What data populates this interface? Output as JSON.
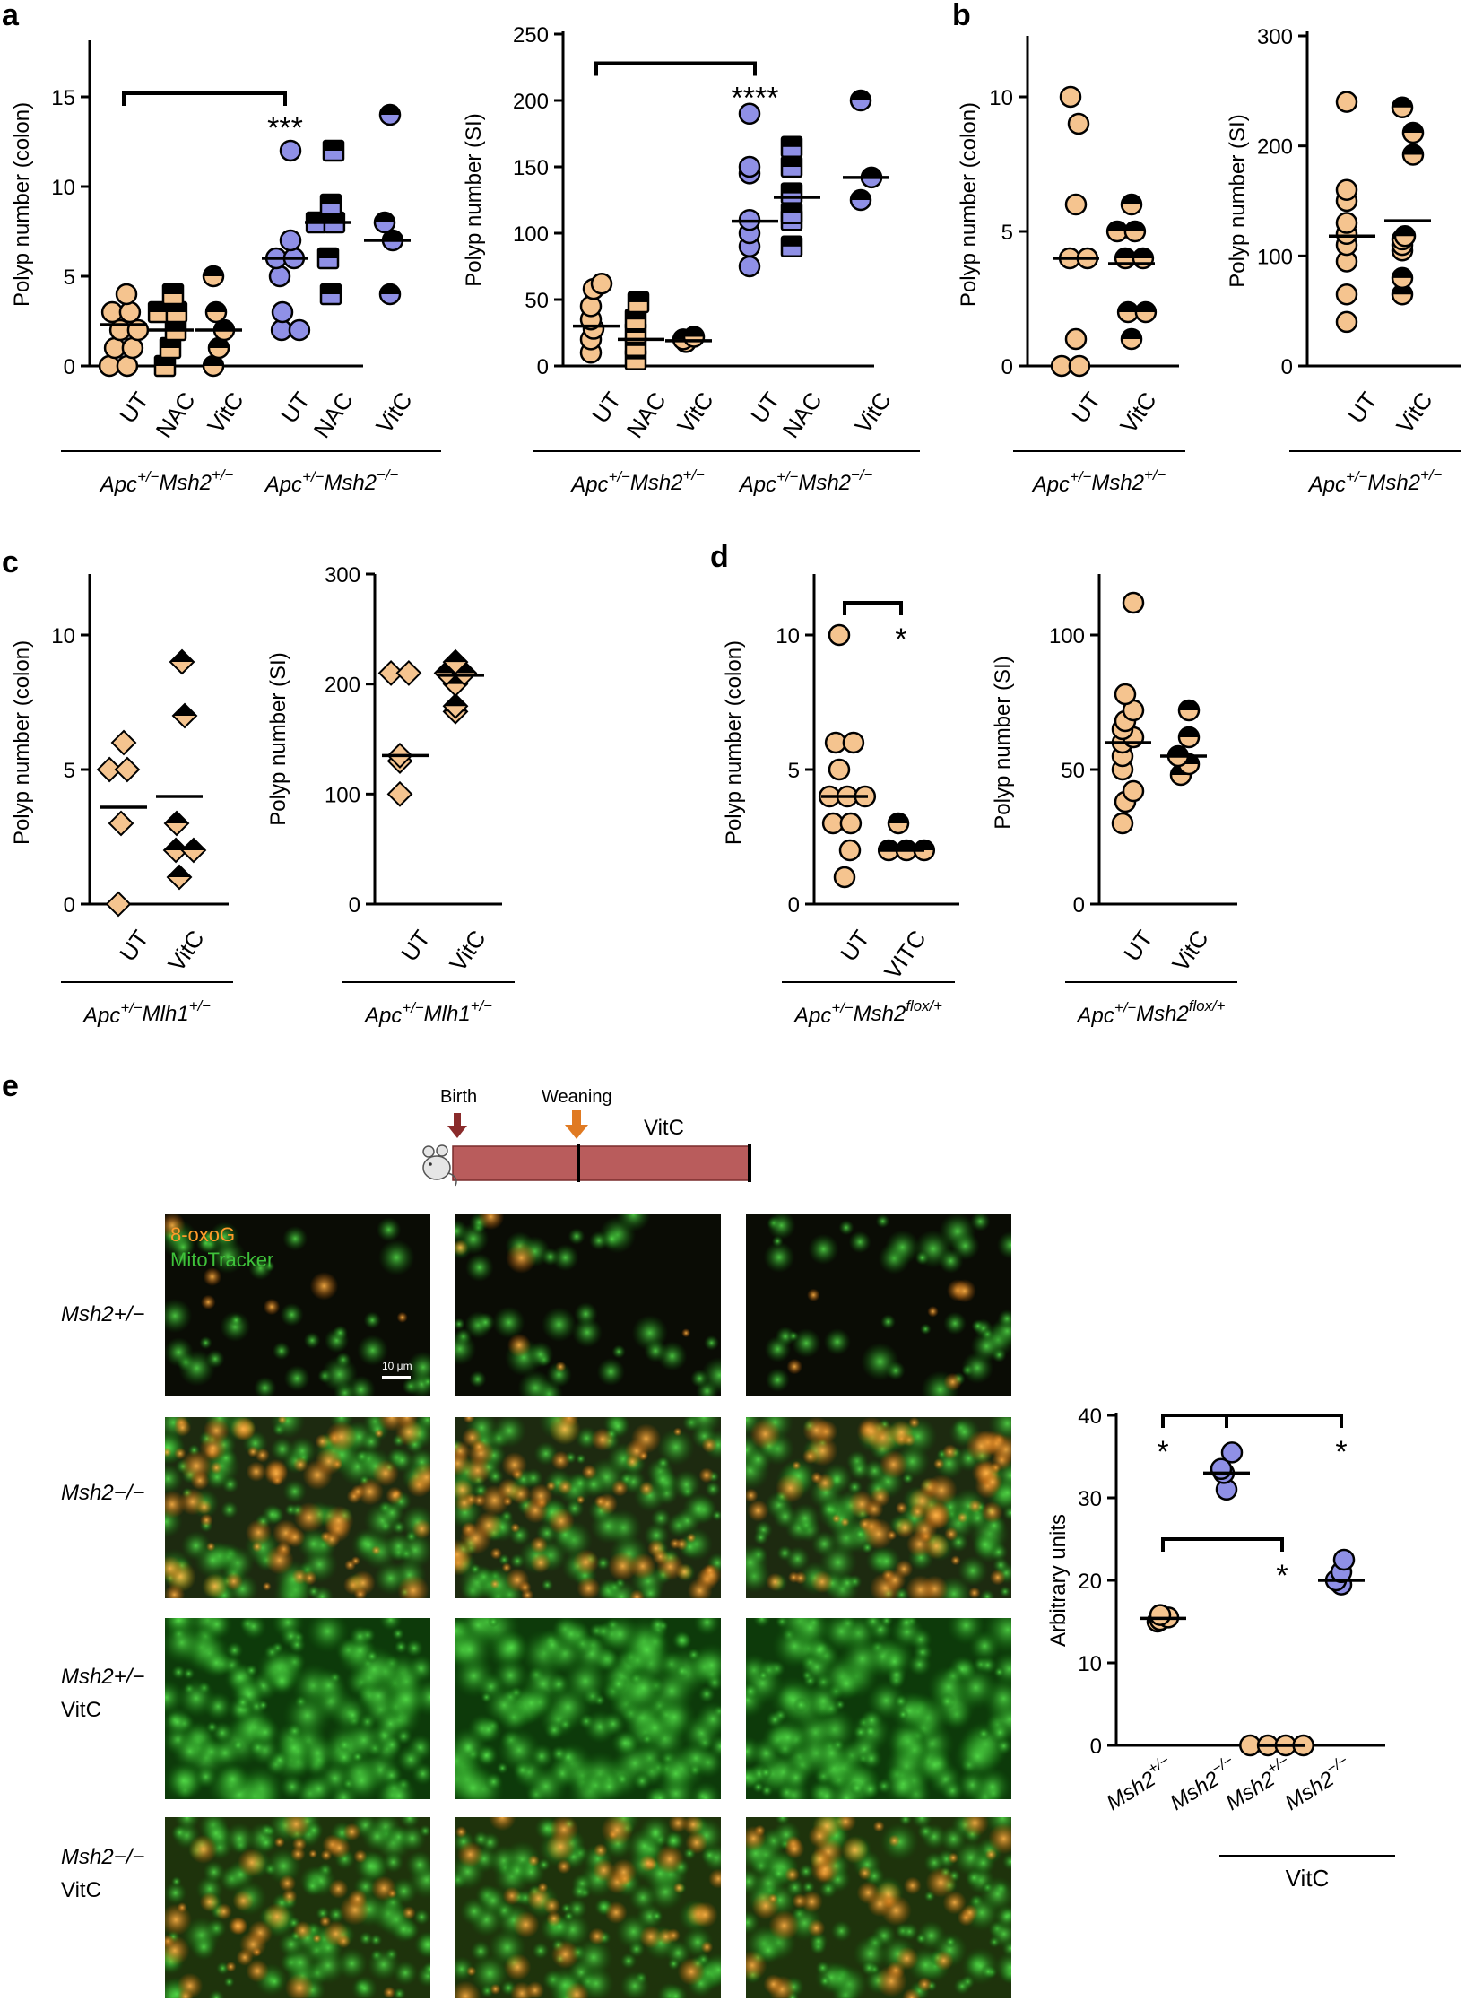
{
  "colors": {
    "tan": "#f5c48f",
    "blue": "#8f90e6",
    "black": "#000000",
    "bar": "#b95c5c",
    "arrow_birth": "#8a2b2b",
    "arrow_weaning": "#e07a22",
    "stain_orange": "#ff9a2a",
    "stain_green": "#3ec23a"
  },
  "panel_labels": [
    "a",
    "b",
    "c",
    "d",
    "e"
  ],
  "genotypes": {
    "apc_msh2_het": "Apc+/−Msh2+/−",
    "apc_msh2_ko": "Apc+/−Msh2−/−",
    "apc_mlh1_het": "Apc+/−Mlh1+/−",
    "apc_msh2_flox": "Apc+/−Msh2flox/+"
  },
  "timeline": {
    "birth": "Birth",
    "weaning": "Weaning",
    "treatment": "VitC"
  },
  "micrographs": {
    "stain1": "8-oxoG",
    "stain2": "MitoTracker",
    "scale_bar": "10 μm",
    "rows": [
      {
        "line1": "Msh2+/−",
        "line2": ""
      },
      {
        "line1": "Msh2−/−",
        "line2": ""
      },
      {
        "line1": "Msh2+/−",
        "line2": "VitC"
      },
      {
        "line1": "Msh2−/−",
        "line2": "VitC"
      }
    ]
  },
  "chart_data": [
    {
      "id": "a-colon",
      "type": "scatter",
      "ylabel": "Polyp number (colon)",
      "ylim": [
        0,
        18
      ],
      "yticks": [
        0,
        5,
        10,
        15
      ],
      "categories": [
        "UT",
        "NAC",
        "VitC",
        "UT",
        "NAC",
        "VitC"
      ],
      "marker_shapes": [
        "circle",
        "square",
        "circle-half",
        "circle",
        "square",
        "circle-half"
      ],
      "marker_colors": [
        "tan",
        "tan",
        "tan",
        "blue",
        "blue",
        "blue"
      ],
      "values": [
        [
          0,
          0,
          1,
          1,
          2,
          2,
          3,
          3,
          4
        ],
        [
          0,
          1,
          2,
          3,
          3,
          4
        ],
        [
          0,
          1,
          2,
          3,
          5
        ],
        [
          2,
          2,
          3,
          5,
          6,
          6,
          7,
          12
        ],
        [
          4,
          6,
          8,
          8,
          9,
          12
        ],
        [
          4,
          7,
          8,
          14
        ]
      ],
      "means": [
        2.3,
        2,
        2,
        6,
        8,
        7
      ],
      "groups": [
        {
          "label": "Apc+/−Msh2+/−",
          "from": 0,
          "to": 2
        },
        {
          "label": "Apc+/−Msh2−/−",
          "from": 3,
          "to": 5
        }
      ],
      "brackets": [
        {
          "from": 0,
          "to": 3,
          "y": 15.2,
          "label": "***"
        }
      ]
    },
    {
      "id": "a-si",
      "type": "scatter",
      "ylabel": "Polyp number (SI)",
      "ylim": [
        0,
        250
      ],
      "yticks": [
        0,
        50,
        100,
        150,
        200,
        250
      ],
      "categories": [
        "UT",
        "NAC",
        "VitC",
        "UT",
        "NAC",
        "VitC"
      ],
      "marker_shapes": [
        "circle",
        "square",
        "circle-half",
        "circle",
        "square",
        "circle-half"
      ],
      "marker_colors": [
        "tan",
        "tan",
        "tan",
        "blue",
        "blue",
        "blue"
      ],
      "values": [
        [
          10,
          20,
          28,
          35,
          45,
          58,
          62
        ],
        [
          5,
          15,
          25,
          35,
          48
        ],
        [
          18,
          20,
          22
        ],
        [
          75,
          90,
          100,
          110,
          145,
          150,
          190
        ],
        [
          90,
          110,
          115,
          130,
          150,
          165
        ],
        [
          125,
          142,
          200
        ]
      ],
      "means": [
        30,
        20,
        19,
        109,
        127,
        142
      ],
      "groups": [
        {
          "label": "Apc+/−Msh2+/−",
          "from": 0,
          "to": 2
        },
        {
          "label": "Apc+/−Msh2−/−",
          "from": 3,
          "to": 5
        }
      ],
      "brackets": [
        {
          "from": 0,
          "to": 3,
          "y": 228,
          "label": "****"
        }
      ]
    },
    {
      "id": "b-colon",
      "type": "scatter",
      "ylabel": "Polyp number (colon)",
      "ylim": [
        0,
        12
      ],
      "yticks": [
        0,
        5,
        10
      ],
      "categories": [
        "UT",
        "VitC"
      ],
      "marker_shapes": [
        "circle",
        "circle-half"
      ],
      "marker_colors": [
        "tan",
        "tan"
      ],
      "values": [
        [
          0,
          0,
          1,
          4,
          4,
          6,
          9,
          10
        ],
        [
          1,
          2,
          2,
          4,
          4,
          5,
          5,
          6
        ]
      ],
      "means": [
        4,
        3.8
      ],
      "groups": [
        {
          "label": "Apc+/−Msh2+/−",
          "from": 0,
          "to": 1
        }
      ],
      "brackets": []
    },
    {
      "id": "b-si",
      "type": "scatter",
      "ylabel": "Polyp number (SI)",
      "ylim": [
        0,
        300
      ],
      "yticks": [
        0,
        100,
        200,
        300
      ],
      "categories": [
        "UT",
        "VitC"
      ],
      "marker_shapes": [
        "circle",
        "circle-half"
      ],
      "marker_colors": [
        "tan",
        "tan"
      ],
      "values": [
        [
          40,
          65,
          95,
          110,
          120,
          130,
          150,
          160,
          240
        ],
        [
          65,
          80,
          105,
          110,
          115,
          118,
          192,
          212,
          235
        ]
      ],
      "means": [
        118,
        132
      ],
      "groups": [
        {
          "label": "Apc+/−Msh2+/−",
          "from": 0,
          "to": 1
        }
      ],
      "brackets": []
    },
    {
      "id": "c-colon",
      "type": "scatter",
      "ylabel": "Polyp number (colon)",
      "ylim": [
        0,
        12
      ],
      "yticks": [
        0,
        5,
        10
      ],
      "categories": [
        "UT",
        "VitC"
      ],
      "marker_shapes": [
        "diamond",
        "diamond-half"
      ],
      "marker_colors": [
        "tan",
        "tan"
      ],
      "values": [
        [
          0,
          3,
          5,
          5,
          6
        ],
        [
          1,
          2,
          2,
          3,
          7,
          9
        ]
      ],
      "means": [
        3.6,
        4
      ],
      "groups": [
        {
          "label": "Apc+/−Mlh1+/−",
          "from": 0,
          "to": 1
        }
      ],
      "brackets": []
    },
    {
      "id": "c-si",
      "type": "scatter",
      "ylabel": "Polyp number (SI)",
      "ylim": [
        0,
        300
      ],
      "yticks": [
        0,
        100,
        200,
        300
      ],
      "categories": [
        "UT",
        "VitC"
      ],
      "marker_shapes": [
        "diamond",
        "diamond-half"
      ],
      "marker_colors": [
        "tan",
        "tan"
      ],
      "values": [
        [
          100,
          130,
          135,
          210,
          210
        ],
        [
          175,
          180,
          200,
          210,
          210,
          220
        ]
      ],
      "means": [
        135,
        208
      ],
      "groups": [
        {
          "label": "Apc+/−Mlh1+/−",
          "from": 0,
          "to": 1
        }
      ],
      "brackets": []
    },
    {
      "id": "d-colon",
      "type": "scatter",
      "ylabel": "Polyp number (colon)",
      "ylim": [
        0,
        12
      ],
      "yticks": [
        0,
        5,
        10
      ],
      "categories": [
        "UT",
        "VITC"
      ],
      "marker_shapes": [
        "circle",
        "circle-half"
      ],
      "marker_colors": [
        "tan",
        "tan"
      ],
      "values": [
        [
          1,
          2,
          3,
          3,
          4,
          4,
          4,
          5,
          6,
          6,
          10
        ],
        [
          2,
          2,
          2,
          3
        ]
      ],
      "means": [
        4,
        2
      ],
      "groups": [
        {
          "label": "Apc+/−Msh2flox/+",
          "from": 0,
          "to": 1
        }
      ],
      "brackets": [
        {
          "from": 0,
          "to": 1,
          "y": 11.2,
          "label": "*"
        }
      ]
    },
    {
      "id": "d-si",
      "type": "scatter",
      "ylabel": "Polyp number (SI)",
      "ylim": [
        0,
        120
      ],
      "yticks": [
        0,
        50,
        100
      ],
      "categories": [
        "UT",
        "VitC"
      ],
      "marker_shapes": [
        "circle",
        "circle-half"
      ],
      "marker_colors": [
        "tan",
        "tan"
      ],
      "values": [
        [
          30,
          38,
          42,
          50,
          55,
          60,
          62,
          65,
          68,
          72,
          78,
          112
        ],
        [
          48,
          52,
          55,
          62,
          72
        ]
      ],
      "means": [
        60,
        55
      ],
      "groups": [
        {
          "label": "Apc+/−Msh2flox/+",
          "from": 0,
          "to": 1
        }
      ],
      "brackets": []
    },
    {
      "id": "e-quant",
      "type": "scatter",
      "ylabel": "Arbitrary units",
      "ylim": [
        0,
        40
      ],
      "yticks": [
        0,
        10,
        20,
        30,
        40
      ],
      "categories": [
        "Msh2+/−",
        "Msh2−/−",
        "Msh2+/−",
        "Msh2−/−"
      ],
      "marker_shapes": [
        "circle",
        "circle",
        "circle",
        "circle"
      ],
      "marker_colors": [
        "tan",
        "blue",
        "tan",
        "blue"
      ],
      "values": [
        [
          15,
          15.2,
          15.5,
          15.8
        ],
        [
          31,
          33,
          33.5,
          35.5
        ],
        [
          0,
          0,
          0,
          0
        ],
        [
          19.5,
          20,
          21,
          22.5
        ]
      ],
      "means": [
        15.4,
        33,
        0,
        20
      ],
      "groups": [
        {
          "label": "VitC",
          "from": 2,
          "to": 3
        }
      ],
      "brackets": [
        {
          "from": 0,
          "to": 3,
          "y": 40,
          "label": "*",
          "mid_drop": 1
        },
        {
          "from": 0,
          "to": 2,
          "y": 25,
          "label": "*"
        }
      ]
    }
  ]
}
